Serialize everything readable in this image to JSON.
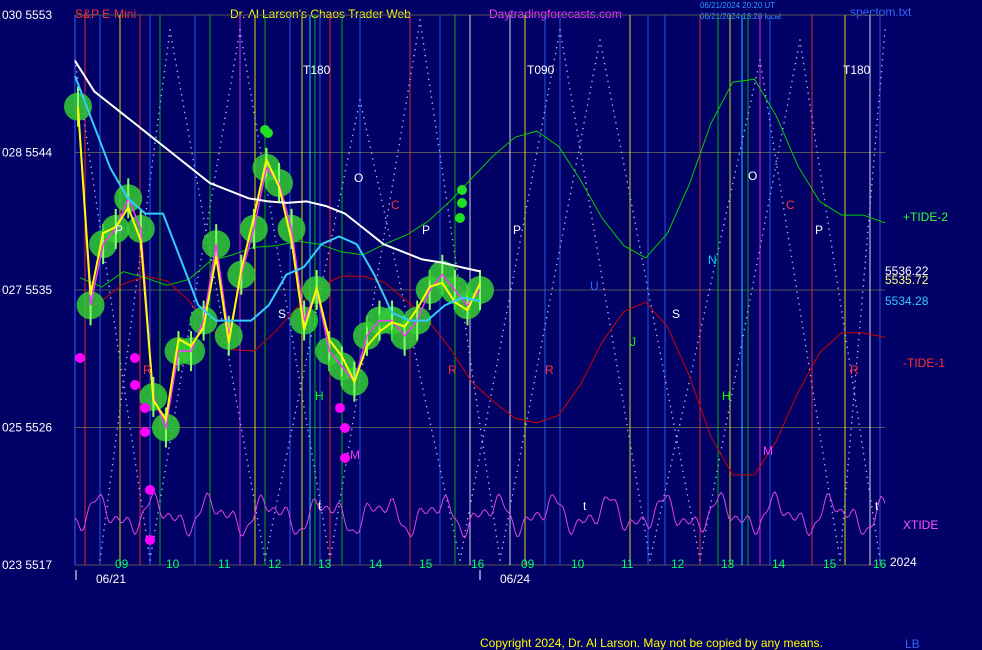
{
  "header": {
    "left_title": "S&P E-Mini",
    "center_title": "Dr. Al Larson's Chaos Trader Web",
    "site": "Daytradingforecasts.com",
    "stamp_line1": "06/21/2024 20:20 UT",
    "stamp_line2": "06/21/2024 13:20 local",
    "file": "spectom.txt"
  },
  "footer": {
    "copyright": "Copyright 2024, Dr. Al Larson. May not be copied by any means.",
    "initials": "LB"
  },
  "chart_data": {
    "type": "line",
    "y_axis": {
      "ticks": [
        {
          "code": "030",
          "value": "5553"
        },
        {
          "code": "028",
          "value": "5544"
        },
        {
          "code": "027",
          "value": "5535"
        },
        {
          "code": "025",
          "value": "5526"
        },
        {
          "code": "023",
          "value": "5517"
        }
      ],
      "ylim": [
        5517,
        5553
      ]
    },
    "x_axis": {
      "hour_labels": [
        "09",
        "10",
        "11",
        "12",
        "13",
        "14",
        "15",
        "16",
        "09",
        "10",
        "11",
        "12",
        "13",
        "14",
        "15",
        "16"
      ],
      "date_labels": [
        "06/21",
        "06/24"
      ],
      "year_label": "2024"
    },
    "markers": [
      "T180",
      "T090",
      "T180"
    ],
    "price_readouts": {
      "white_ma": "5536.22",
      "yellow": "5535.72",
      "cyan_ma": "5534.28"
    },
    "series": [
      {
        "name": "+TIDE-2",
        "color": "#00cc00"
      },
      {
        "name": "-TIDE-1",
        "color": "#cc0000"
      },
      {
        "name": "XTIDE",
        "color": "#dd44dd"
      }
    ],
    "tide_2_values": [
      5535.8,
      5535.2,
      5536.2,
      5535.8,
      5535.3,
      5535.7,
      5536.9,
      5537.3,
      5537.8,
      5537.9,
      5538.2,
      5538.0,
      5537.5,
      5537.3,
      5538.0,
      5538.6,
      5539.5,
      5540.8,
      5542.3,
      5543.8,
      5545.0,
      5545.4,
      5544.4,
      5542.2,
      5539.7,
      5537.9,
      5537.1,
      5538.7,
      5541.9,
      5545.9,
      5548.6,
      5548.8,
      5546.4,
      5543.1,
      5540.8,
      5539.9,
      5539.9,
      5539.4
    ],
    "tide_1_values": [
      5533.5,
      5534.3,
      5535.4,
      5535.9,
      5535.6,
      5534.3,
      5532.5,
      5531.1,
      5531.0,
      5532.3,
      5533.9,
      5535.2,
      5535.9,
      5535.9,
      5535.5,
      5534.3,
      5533.0,
      5531.2,
      5529.0,
      5527.7,
      5526.6,
      5526.3,
      5526.8,
      5528.8,
      5531.6,
      5533.6,
      5534.2,
      5532.6,
      5529.4,
      5525.4,
      5522.9,
      5522.9,
      5525.1,
      5528.3,
      5530.9,
      5532.2,
      5532.2,
      5531.9
    ],
    "price_values": [
      5547,
      5534,
      5538,
      5539,
      5541,
      5539,
      5528,
      5526,
      5531,
      5531,
      5533,
      5538,
      5532,
      5536,
      5539,
      5543,
      5542,
      5539,
      5533,
      5535,
      5531,
      5530,
      5529,
      5532,
      5533,
      5533,
      5532,
      5533,
      5535,
      5536,
      5535,
      5534,
      5535
    ],
    "white_ma_values": [
      5550,
      5548,
      5547,
      5546,
      5545,
      5544,
      5543,
      5542,
      5541.5,
      5541,
      5540.8,
      5540.7,
      5540.8,
      5540.5,
      5540,
      5539,
      5538,
      5537.5,
      5537,
      5536.8,
      5536.5,
      5536.22
    ],
    "cyan_ma_values": [
      5549,
      5546,
      5543,
      5541,
      5540,
      5540,
      5537,
      5534,
      5533,
      5533,
      5533,
      5534,
      5536,
      5536.5,
      5538,
      5538.5,
      5538,
      5536,
      5533.5,
      5533,
      5533,
      5534,
      5534.5,
      5534.28
    ],
    "cycle_letters": [
      {
        "t": "P",
        "color": "#ffffff"
      },
      {
        "t": "R",
        "color": "#ff3333"
      },
      {
        "t": "S",
        "color": "#ffffff"
      },
      {
        "t": "O",
        "color": "#ffffff"
      },
      {
        "t": "C",
        "color": "#ff3333"
      },
      {
        "t": "H",
        "color": "#00ff00"
      },
      {
        "t": "M",
        "color": "#ff33ff"
      },
      {
        "t": "P",
        "color": "#ffffff"
      },
      {
        "t": "R",
        "color": "#ff3333"
      },
      {
        "t": "P",
        "color": "#ffffff"
      },
      {
        "t": "R",
        "color": "#ff3333"
      },
      {
        "t": "U",
        "color": "#3366ff"
      },
      {
        "t": "J",
        "color": "#00ff00"
      },
      {
        "t": "S",
        "color": "#ffffff"
      },
      {
        "t": "N",
        "color": "#00ccff"
      },
      {
        "t": "H",
        "color": "#00ff00"
      },
      {
        "t": "O",
        "color": "#ffffff"
      },
      {
        "t": "M",
        "color": "#ff33ff"
      },
      {
        "t": "C",
        "color": "#ff3333"
      },
      {
        "t": "P",
        "color": "#ffffff"
      },
      {
        "t": "R",
        "color": "#ff3333"
      },
      {
        "t": "t",
        "color": "#ffffff"
      },
      {
        "t": "t",
        "color": "#ffffff"
      },
      {
        "t": "t",
        "color": "#ffffff"
      }
    ]
  }
}
